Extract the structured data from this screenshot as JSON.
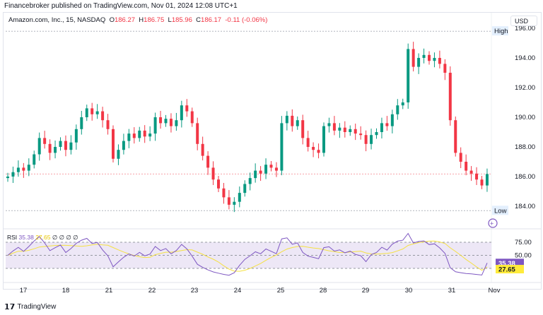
{
  "publisher_line": "Financebroker published on TradingView.com, Nov 01, 2024 12:08 UTC+1",
  "legend": {
    "symbol": "Amazon.com, Inc., 15, NASDAQ",
    "o_label": "O",
    "o": "186.27",
    "h_label": "H",
    "h": "186.75",
    "l_label": "L",
    "l": "185.96",
    "c_label": "C",
    "c": "186.17",
    "change": "-0.11 (-0.06%)"
  },
  "currency_button": "USD",
  "high_label": "High",
  "low_label": "Low",
  "rsi_legend": {
    "name": "RSI",
    "rsi": "35.38",
    "ma": "27.65",
    "extra": "∅ ∅ ∅ ∅"
  },
  "footer_brand": "TradingView",
  "colors": {
    "up": "#089981",
    "down": "#f23645",
    "rsi": "#7e57c2",
    "rsi_ma": "#f5e142",
    "rsi_band": "#ede7f6"
  },
  "chart_data": {
    "type": "candlestick",
    "interval": "15",
    "y_ticks": [
      "196.00",
      "194.00",
      "192.00",
      "190.00",
      "188.00",
      "186.00",
      "184.00"
    ],
    "x_ticks": [
      "17",
      "18",
      "21",
      "22",
      "23",
      "24",
      "25",
      "28",
      "29",
      "30",
      "31",
      "Nov"
    ],
    "closes": [
      186.0,
      186.3,
      186.6,
      186.4,
      186.8,
      187.5,
      188.6,
      188.2,
      187.6,
      188.0,
      188.4,
      187.8,
      188.3,
      189.2,
      190.0,
      190.6,
      190.2,
      190.4,
      189.8,
      189.2,
      187.2,
      187.8,
      188.4,
      188.9,
      188.6,
      189.1,
      188.7,
      188.9,
      190.0,
      189.6,
      189.9,
      189.4,
      189.8,
      190.8,
      190.4,
      189.6,
      188.2,
      187.4,
      186.6,
      185.8,
      185.2,
      184.6,
      184.1,
      184.3,
      184.9,
      185.5,
      185.9,
      186.4,
      186.2,
      186.8,
      186.6,
      186.4,
      189.6,
      190.1,
      189.4,
      189.8,
      188.6,
      188.0,
      187.8,
      187.6,
      189.4,
      189.6,
      189.1,
      189.3,
      189.0,
      189.2,
      188.9,
      188.8,
      188.2,
      188.8,
      189.0,
      189.6,
      189.4,
      190.2,
      190.8,
      191.0,
      194.6,
      193.4,
      194.0,
      194.2,
      193.8,
      194.0,
      193.6,
      193.0,
      189.8,
      187.6,
      187.0,
      186.4,
      186.2,
      185.8,
      185.4,
      186.17
    ],
    "period_high": 195.8,
    "period_low": 183.7,
    "last_price": 186.17,
    "rsi": {
      "ticks": [
        "75.00",
        "50.00"
      ],
      "levels": [
        75,
        50,
        25
      ],
      "last": 35.38,
      "ma_last": 27.65,
      "range": [
        0,
        100
      ]
    }
  }
}
